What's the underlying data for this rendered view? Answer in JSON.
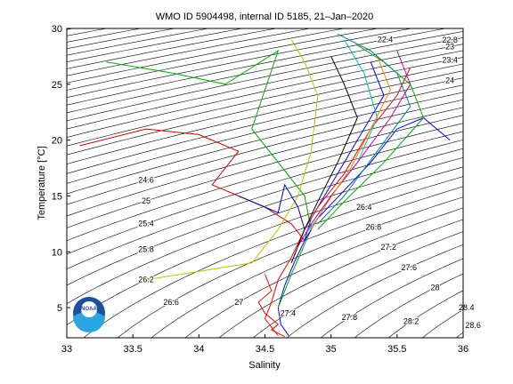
{
  "chart_data": {
    "type": "ts-diagram",
    "title": "WMO ID 5904498, internal ID 5185, 21–Jan–2020",
    "x_label": "Salinity",
    "y_label": "Temperature [°C]",
    "xlim": [
      33,
      36
    ],
    "xticks": [
      33,
      33.5,
      34,
      34.5,
      35,
      35.5,
      36
    ],
    "ylim": [
      2.3,
      30
    ],
    "yticks": [
      5,
      10,
      15,
      20,
      25,
      30
    ],
    "logo_text": "NOAA",
    "isopycnals": {
      "color": "#000000",
      "levels": [
        20.2,
        20.4,
        20.6,
        20.8,
        21,
        21.2,
        21.4,
        21.6,
        21.8,
        22,
        22.2,
        22.4,
        22.6,
        22.8,
        23,
        23.2,
        23.4,
        23.6,
        23.8,
        24,
        24.2,
        24.4,
        24.6,
        24.8,
        25,
        25.2,
        25.4,
        25.6,
        25.8,
        26,
        26.2,
        26.4,
        26.6,
        26.8,
        27,
        27.2,
        27.4,
        27.6,
        27.8,
        28,
        28.2,
        28.4,
        28.6
      ],
      "labels": [
        22.4,
        22.8,
        23,
        23.4,
        24,
        24.6,
        25,
        25.4,
        25.8,
        26.2,
        26.6,
        27,
        27.4,
        27.8,
        28.2,
        28.6,
        26.4,
        26.8,
        27.2,
        27.6,
        28,
        28.4
      ]
    },
    "series": [
      {
        "color": "#0000ff",
        "x": [
          35.3,
          35.4,
          35.2,
          35.0,
          34.85,
          34.8,
          34.72,
          34.65,
          34.6,
          34.62,
          34.68
        ],
        "values": [
          27,
          24,
          20,
          16,
          13,
          11,
          9,
          7,
          5,
          3.5,
          2.5
        ]
      },
      {
        "color": "#ff0000",
        "x": [
          35.6,
          35.5,
          35.3,
          35.1,
          34.9,
          34.8,
          34.7,
          34.6,
          34.55,
          34.5,
          34.6
        ],
        "values": [
          26.5,
          24,
          21,
          17,
          14,
          12,
          9.5,
          7.5,
          5.5,
          4,
          2.5
        ]
      },
      {
        "color": "#00aa00",
        "x": [
          33.3,
          33.8,
          34.2,
          34.6,
          34.4,
          34.8,
          34.85,
          34.7,
          34.6
        ],
        "values": [
          27,
          26,
          25,
          28,
          21,
          15,
          12,
          8,
          5
        ]
      },
      {
        "color": "#cc0000",
        "x": [
          33.1,
          33.6,
          34.0,
          34.3,
          34.1,
          34.5,
          34.7,
          34.8
        ],
        "values": [
          19.5,
          21,
          20.5,
          19,
          16,
          14,
          12.5,
          11
        ]
      },
      {
        "color": "#00bfbf",
        "x": [
          35.1,
          35.25,
          35.35,
          35.2,
          35.0,
          34.9,
          34.8
        ],
        "values": [
          29,
          26,
          22,
          18,
          15,
          13,
          11.5
        ]
      },
      {
        "color": "#bf00bf",
        "x": [
          35.5,
          35.6,
          35.45,
          35.2,
          35.0,
          34.85,
          34.75
        ],
        "values": [
          28,
          25,
          22,
          18,
          15,
          12.5,
          10.5
        ]
      },
      {
        "color": "#bfbf00",
        "x": [
          34.7,
          34.8,
          34.9,
          34.85,
          34.75,
          34.6,
          34.4,
          33.6
        ],
        "values": [
          29,
          27,
          24,
          19,
          15,
          12,
          9,
          7.5
        ]
      },
      {
        "color": "#000000",
        "x": [
          35.0,
          35.1,
          35.2,
          35.05,
          34.9,
          34.8,
          34.7
        ],
        "values": [
          27.5,
          25,
          22,
          18,
          14.5,
          12,
          9
        ]
      },
      {
        "color": "#0000ff",
        "x": [
          35.9,
          35.7,
          35.5,
          35.3,
          35.1,
          34.9,
          34.8
        ],
        "values": [
          20,
          22,
          21,
          18,
          15.5,
          13,
          11
        ]
      },
      {
        "color": "#00aa00",
        "x": [
          35.2,
          35.4,
          35.6,
          35.7,
          35.4,
          35.1,
          34.9
        ],
        "values": [
          28.5,
          27,
          25,
          22,
          18,
          14.5,
          12
        ]
      },
      {
        "color": "#ff0000",
        "x": [
          34.5,
          34.55,
          34.45,
          34.5,
          34.6,
          34.55,
          34.65
        ],
        "values": [
          8,
          6.5,
          5.5,
          4.5,
          3.5,
          3,
          2.4
        ]
      },
      {
        "color": "#ff8000",
        "x": [
          35.35,
          35.45,
          35.3,
          35.15,
          34.95,
          34.85
        ],
        "values": [
          27.5,
          24.5,
          21,
          17.5,
          14,
          12
        ]
      },
      {
        "color": "#0000aa",
        "x": [
          34.3,
          34.5,
          34.6,
          34.65,
          34.75,
          34.8
        ],
        "values": [
          15,
          14,
          13.5,
          16,
          14,
          12
        ]
      },
      {
        "color": "#008080",
        "x": [
          35.05,
          35.3,
          35.5,
          35.6,
          35.35,
          35.1,
          34.9
        ],
        "values": [
          29.5,
          28,
          26,
          23,
          19,
          15,
          12.5
        ]
      }
    ]
  }
}
